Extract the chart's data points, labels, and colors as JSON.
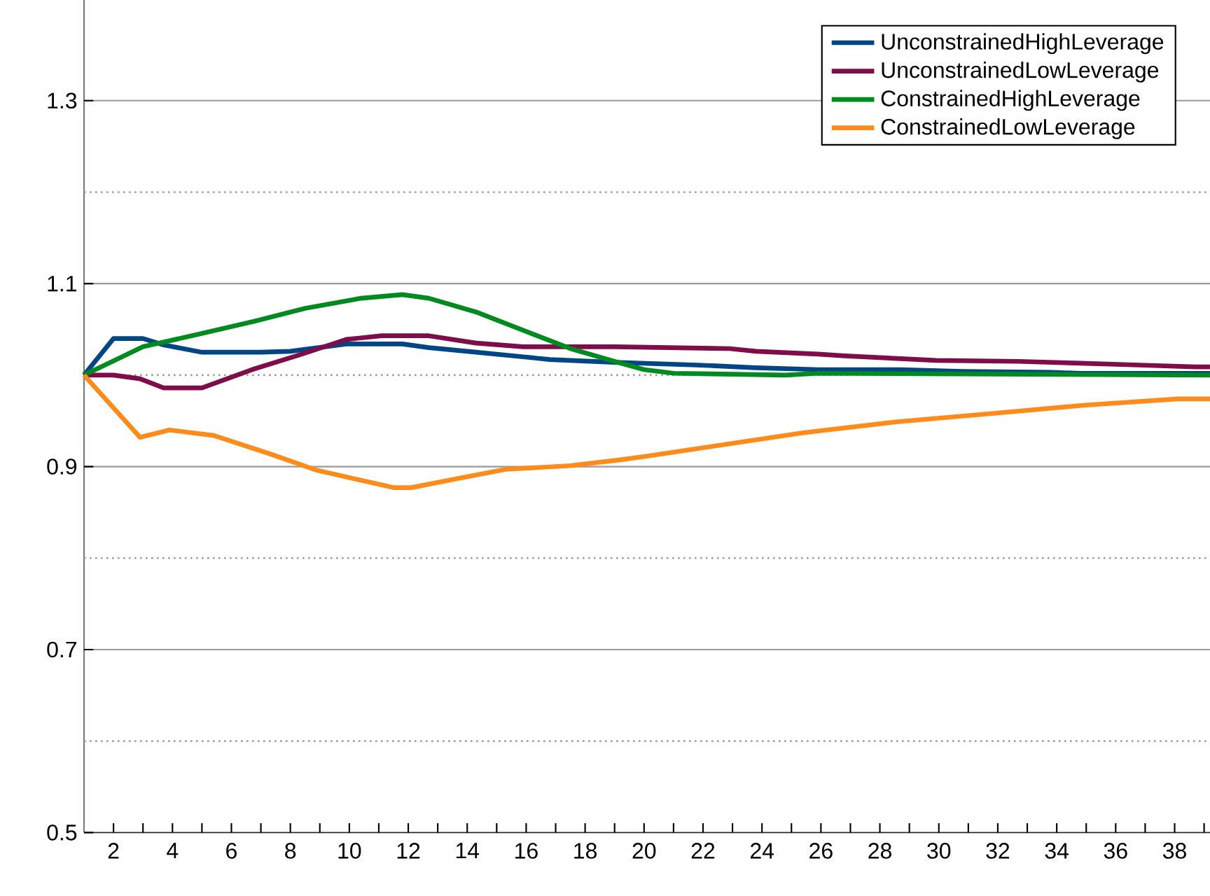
{
  "chart_data": {
    "type": "line",
    "xlim": [
      1,
      39.2
    ],
    "ylim": [
      0.5,
      1.41
    ],
    "xticks": [
      {
        "value": 2,
        "label": "2"
      },
      {
        "value": 3,
        "label": null
      },
      {
        "value": 4,
        "label": "4"
      },
      {
        "value": 5,
        "label": null
      },
      {
        "value": 6,
        "label": "6"
      },
      {
        "value": 7,
        "label": null
      },
      {
        "value": 8,
        "label": "8"
      },
      {
        "value": 9,
        "label": null
      },
      {
        "value": 10,
        "label": "10"
      },
      {
        "value": 11,
        "label": null
      },
      {
        "value": 12,
        "label": "12"
      },
      {
        "value": 13,
        "label": null
      },
      {
        "value": 14,
        "label": "14"
      },
      {
        "value": 15,
        "label": null
      },
      {
        "value": 16,
        "label": "16"
      },
      {
        "value": 17,
        "label": null
      },
      {
        "value": 18,
        "label": "18"
      },
      {
        "value": 19,
        "label": null
      },
      {
        "value": 20,
        "label": "20"
      },
      {
        "value": 21,
        "label": null
      },
      {
        "value": 22,
        "label": "22"
      },
      {
        "value": 23,
        "label": null
      },
      {
        "value": 24,
        "label": "24"
      },
      {
        "value": 25,
        "label": null
      },
      {
        "value": 26,
        "label": "26"
      },
      {
        "value": 27,
        "label": null
      },
      {
        "value": 28,
        "label": "28"
      },
      {
        "value": 29,
        "label": null
      },
      {
        "value": 30,
        "label": "30"
      },
      {
        "value": 31,
        "label": null
      },
      {
        "value": 32,
        "label": "32"
      },
      {
        "value": 33,
        "label": null
      },
      {
        "value": 34,
        "label": "34"
      },
      {
        "value": 35,
        "label": null
      },
      {
        "value": 36,
        "label": "36"
      },
      {
        "value": 37,
        "label": null
      },
      {
        "value": 38,
        "label": "38"
      },
      {
        "value": 39,
        "label": null
      }
    ],
    "yticks": [
      0.5,
      0.7,
      0.9,
      1.1,
      1.3
    ],
    "grid": "y",
    "legend": "top right",
    "marker": "none",
    "line_style": "solid",
    "ref_lines": [
      {
        "axis": "y",
        "value": 0.6,
        "color": "#a0a0a0",
        "line_style": "dotted"
      },
      {
        "axis": "y",
        "value": 0.8,
        "color": "#a0a0a0",
        "line_style": "dotted"
      },
      {
        "axis": "y",
        "value": 1.0,
        "color": "#a0a0a0",
        "line_style": "dotted"
      },
      {
        "axis": "y",
        "value": 1.2,
        "color": "#a0a0a0",
        "line_style": "dotted"
      }
    ],
    "series": [
      {
        "name": "UnconstrainedHighLeverage",
        "color": "#004586",
        "x": [
          1,
          2,
          3,
          3.7,
          5,
          7,
          8,
          9.9,
          11.8,
          12.7,
          14.3,
          15.9,
          16.8,
          19,
          21.8,
          23.8,
          25.9,
          28.7,
          30.8,
          33.8,
          34.8,
          39.2
        ],
        "values": [
          1.0,
          1.04,
          1.04,
          1.033,
          1.025,
          1.025,
          1.026,
          1.034,
          1.034,
          1.03,
          1.025,
          1.02,
          1.017,
          1.014,
          1.011,
          1.008,
          1.006,
          1.006,
          1.004,
          1.003,
          1.002,
          1.002
        ]
      },
      {
        "name": "UnconstrainedLowLeverage",
        "color": "#7e0d4a",
        "x": [
          1,
          2,
          2.9,
          3.7,
          5,
          6.7,
          8.3,
          9.9,
          11.1,
          12.7,
          14.3,
          15.9,
          19,
          22.9,
          23.8,
          25.9,
          26.8,
          28.7,
          29.9,
          32.7,
          34.8,
          36.8,
          38.7,
          39.2
        ],
        "values": [
          1.0,
          1.0,
          0.996,
          0.986,
          0.986,
          1.006,
          1.022,
          1.039,
          1.043,
          1.043,
          1.035,
          1.031,
          1.031,
          1.029,
          1.026,
          1.023,
          1.021,
          1.018,
          1.016,
          1.015,
          1.013,
          1.011,
          1.009,
          1.009
        ]
      },
      {
        "name": "ConstrainedHighLeverage",
        "color": "#008a1f",
        "x": [
          1,
          3,
          4.8,
          6.8,
          8.5,
          10.4,
          11.8,
          12.7,
          14.3,
          15.9,
          17.5,
          19.1,
          20,
          21,
          24.8,
          25.9,
          39.2
        ],
        "values": [
          1.0,
          1.031,
          1.044,
          1.059,
          1.073,
          1.084,
          1.088,
          1.084,
          1.069,
          1.049,
          1.029,
          1.014,
          1.006,
          1.002,
          1.0,
          1.002,
          1.0
        ]
      },
      {
        "name": "ConstrainedLowLeverage",
        "color": "#ff8c1a",
        "x": [
          1,
          2.9,
          3.9,
          5.4,
          7.3,
          8.9,
          11.5,
          12.1,
          14,
          15.3,
          17.5,
          19.1,
          20,
          22.3,
          25.4,
          28.6,
          31.8,
          34.9,
          38.1,
          39.2
        ],
        "values": [
          1.0,
          0.932,
          0.94,
          0.934,
          0.914,
          0.896,
          0.877,
          0.877,
          0.889,
          0.897,
          0.901,
          0.907,
          0.911,
          0.922,
          0.937,
          0.949,
          0.958,
          0.967,
          0.974,
          0.974
        ]
      }
    ]
  }
}
